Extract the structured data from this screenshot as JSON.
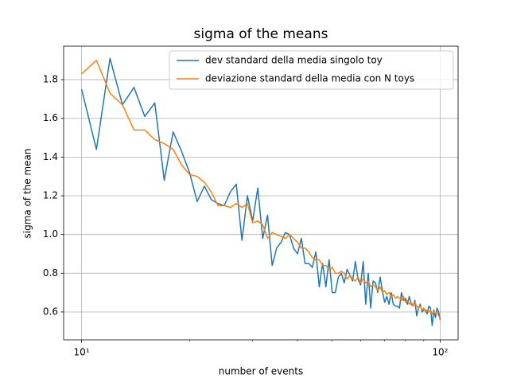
{
  "chart_data": {
    "type": "line",
    "title": "sigma of the means",
    "xlabel": "number of events",
    "ylabel": "sigma of the mean",
    "x": [
      10,
      11,
      12,
      13,
      14,
      15,
      16,
      17,
      18,
      19,
      20,
      21,
      22,
      23,
      24,
      25,
      26,
      27,
      28,
      29,
      30,
      31,
      32,
      33,
      34,
      35,
      36,
      37,
      38,
      39,
      40,
      41,
      42,
      43,
      44,
      45,
      46,
      47,
      48,
      49,
      50,
      51,
      52,
      53,
      54,
      55,
      56,
      57,
      58,
      59,
      60,
      61,
      62,
      63,
      64,
      65,
      66,
      67,
      68,
      69,
      70,
      71,
      72,
      73,
      74,
      75,
      76,
      77,
      78,
      79,
      80,
      81,
      82,
      83,
      84,
      85,
      86,
      87,
      88,
      89,
      90,
      91,
      92,
      93,
      94,
      95,
      96,
      97,
      98,
      99,
      100
    ],
    "series": [
      {
        "name": "dev standard della media singolo toy",
        "color": "#1f77b4",
        "values": [
          1.75,
          1.44,
          1.91,
          1.67,
          1.76,
          1.61,
          1.68,
          1.28,
          1.53,
          1.43,
          1.32,
          1.17,
          1.25,
          1.18,
          1.16,
          1.15,
          1.22,
          1.26,
          0.97,
          1.2,
          1.07,
          1.24,
          0.98,
          1.1,
          0.84,
          0.93,
          0.96,
          1.01,
          1.0,
          0.93,
          0.9,
          0.98,
          0.85,
          0.85,
          0.83,
          0.91,
          0.73,
          0.85,
          0.73,
          0.87,
          0.7,
          0.7,
          0.78,
          0.8,
          0.75,
          0.82,
          0.79,
          0.76,
          0.86,
          0.77,
          0.74,
          0.86,
          0.64,
          0.8,
          0.62,
          0.76,
          0.75,
          0.7,
          0.78,
          0.71,
          0.65,
          0.68,
          0.64,
          0.7,
          0.64,
          0.63,
          0.63,
          0.62,
          0.7,
          0.66,
          0.67,
          0.64,
          0.68,
          0.64,
          0.63,
          0.66,
          0.58,
          0.62,
          0.64,
          0.6,
          0.61,
          0.61,
          0.59,
          0.63,
          0.62,
          0.53,
          0.61,
          0.57,
          0.62,
          0.6,
          0.56
        ]
      },
      {
        "name": "deviazione standard della media con N toys",
        "color": "#ff7f0e",
        "values": [
          1.83,
          1.9,
          1.73,
          1.67,
          1.54,
          1.54,
          1.49,
          1.47,
          1.44,
          1.36,
          1.31,
          1.3,
          1.27,
          1.22,
          1.15,
          1.15,
          1.14,
          1.16,
          1.14,
          1.16,
          1.06,
          1.07,
          1.05,
          0.98,
          1.01,
          1.0,
          0.99,
          0.98,
          1.0,
          0.98,
          0.96,
          0.93,
          0.93,
          0.91,
          0.88,
          0.87,
          0.87,
          0.84,
          0.84,
          0.82,
          0.83,
          0.8,
          0.8,
          0.81,
          0.8,
          0.77,
          0.79,
          0.77,
          0.76,
          0.78,
          0.75,
          0.77,
          0.75,
          0.76,
          0.73,
          0.74,
          0.73,
          0.71,
          0.73,
          0.7,
          0.71,
          0.69,
          0.7,
          0.68,
          0.69,
          0.67,
          0.68,
          0.67,
          0.66,
          0.68,
          0.65,
          0.66,
          0.64,
          0.65,
          0.63,
          0.65,
          0.63,
          0.62,
          0.63,
          0.61,
          0.62,
          0.6,
          0.61,
          0.6,
          0.61,
          0.59,
          0.6,
          0.59,
          0.6,
          0.58,
          0.57
        ]
      }
    ],
    "xscale": "log",
    "xlim": [
      8.91,
      112.2
    ],
    "xticks": [
      {
        "value": 10,
        "label": "10¹"
      },
      {
        "value": 100,
        "label": "10²"
      }
    ],
    "xminorticks": [
      20,
      30,
      40,
      50,
      60,
      70,
      80,
      90
    ],
    "ylim": [
      0.456,
      1.973
    ],
    "yticks": [
      0.6,
      0.8,
      {
        "value": 1.0,
        "label": "1.0"
      },
      1.2,
      1.4,
      1.6,
      1.8
    ],
    "grid": true,
    "legend": "upper right"
  }
}
